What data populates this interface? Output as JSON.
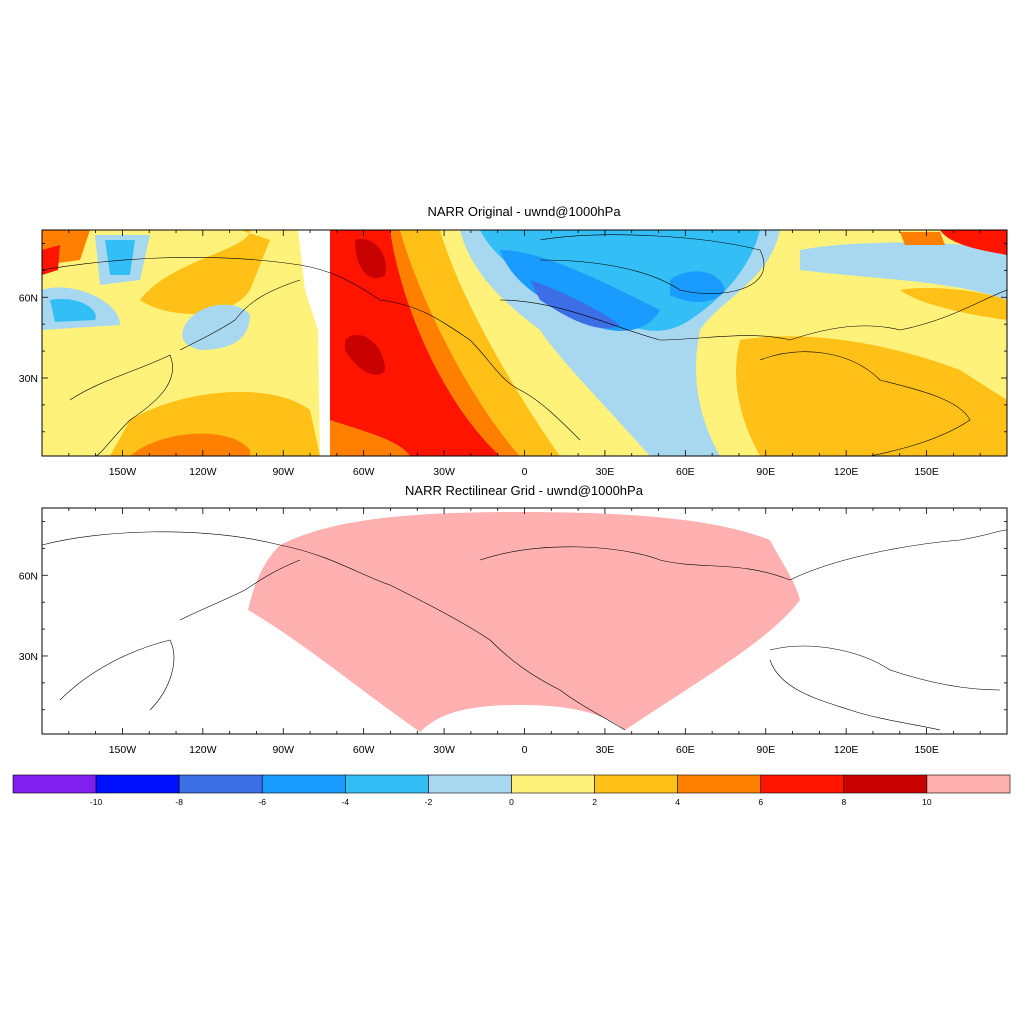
{
  "chart_data": [
    {
      "type": "heatmap",
      "title": "NARR Original - uwnd@1000hPa",
      "x_ticks": [
        "150W",
        "120W",
        "90W",
        "60W",
        "30W",
        "0",
        "30E",
        "60E",
        "90E",
        "120E",
        "150E"
      ],
      "y_ticks": [
        "60N",
        "30N"
      ],
      "xlim": [
        -180,
        180
      ],
      "ylim": [
        0,
        85
      ],
      "description_values": "u-wind field: strong westerlies 6-10 over N Pacific/west N. America, easterlies -2 to -8 over Canada/Greenland, 2-4 over N Africa"
    },
    {
      "type": "heatmap",
      "title": "NARR Rectilinear Grid - uwnd@1000hPa",
      "x_ticks": [
        "150W",
        "120W",
        "90W",
        "60W",
        "30W",
        "0",
        "30E",
        "60E",
        "90E",
        "120E",
        "150E"
      ],
      "y_ticks": [
        "60N",
        "30N"
      ],
      "xlim": [
        -180,
        180
      ],
      "ylim": [
        0,
        85
      ],
      "description_values": "NARR domain filled uniformly with >10 class"
    }
  ],
  "colorbar": {
    "labels": [
      "-10",
      "-8",
      "-6",
      "-4",
      "-2",
      "0",
      "2",
      "4",
      "6",
      "8",
      "10"
    ],
    "colors": [
      "#8020ee",
      "#0010ff",
      "#3c6ee6",
      "#1a9bff",
      "#33bff5",
      "#a8d8f0",
      "#fff27a",
      "#ffc018",
      "#ff8000",
      "#ff1400",
      "#c80000",
      "#ffb0b0"
    ]
  }
}
